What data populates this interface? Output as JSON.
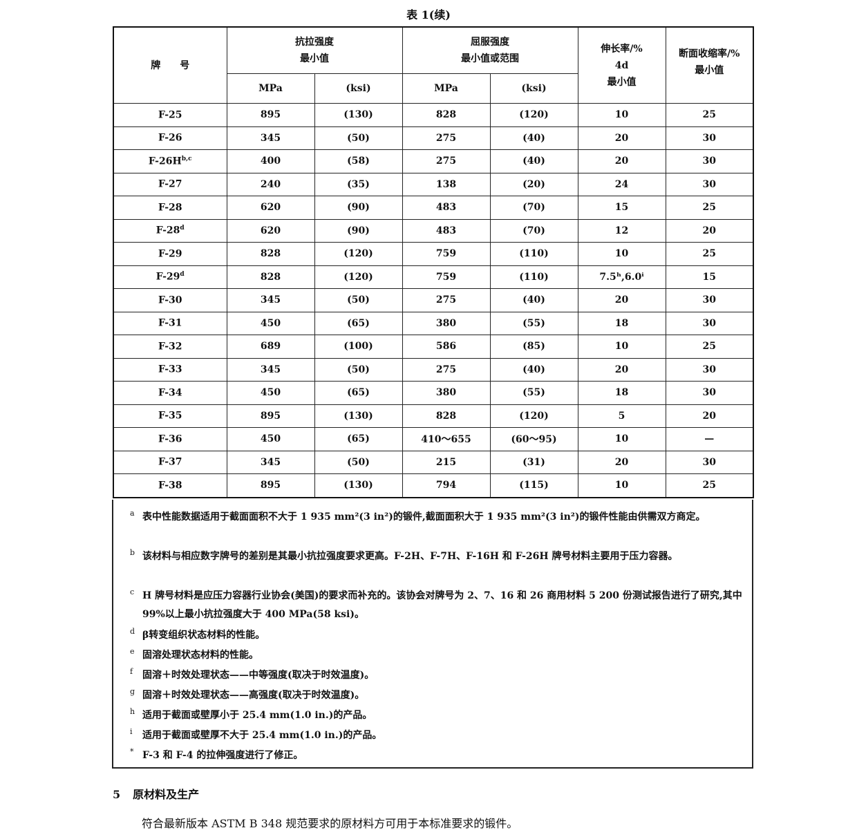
{
  "table_title": "表 1(续)",
  "headers": {
    "grade": "牌　　号",
    "tensile": "抗拉强度\n最小值",
    "yield": "屈服强度\n最小值或范围",
    "elongation": "伸长率/%\n4d\n最小值",
    "reduction": "断面收缩率/%\n最小值",
    "mpa": "MPa",
    "ksi": "(ksi)"
  },
  "rows": [
    {
      "grade": "F-25",
      "sup": "",
      "ts_mpa": "895",
      "ts_ksi": "(130)",
      "ys_mpa": "828",
      "ys_ksi": "(120)",
      "el": "10",
      "ra": "25"
    },
    {
      "grade": "F-26",
      "sup": "",
      "ts_mpa": "345",
      "ts_ksi": "(50)",
      "ys_mpa": "275",
      "ys_ksi": "(40)",
      "el": "20",
      "ra": "30"
    },
    {
      "grade": "F-26H",
      "sup": "b,c",
      "ts_mpa": "400",
      "ts_ksi": "(58)",
      "ys_mpa": "275",
      "ys_ksi": "(40)",
      "el": "20",
      "ra": "30"
    },
    {
      "grade": "F-27",
      "sup": "",
      "ts_mpa": "240",
      "ts_ksi": "(35)",
      "ys_mpa": "138",
      "ys_ksi": "(20)",
      "el": "24",
      "ra": "30"
    },
    {
      "grade": "F-28",
      "sup": "",
      "ts_mpa": "620",
      "ts_ksi": "(90)",
      "ys_mpa": "483",
      "ys_ksi": "(70)",
      "el": "15",
      "ra": "25"
    },
    {
      "grade": "F-28",
      "sup": "d",
      "ts_mpa": "620",
      "ts_ksi": "(90)",
      "ys_mpa": "483",
      "ys_ksi": "(70)",
      "el": "12",
      "ra": "20"
    },
    {
      "grade": "F-29",
      "sup": "",
      "ts_mpa": "828",
      "ts_ksi": "(120)",
      "ys_mpa": "759",
      "ys_ksi": "(110)",
      "el": "10",
      "ra": "25"
    },
    {
      "grade": "F-29",
      "sup": "d",
      "ts_mpa": "828",
      "ts_ksi": "(120)",
      "ys_mpa": "759",
      "ys_ksi": "(110)",
      "el": "7.5ʰ,6.0ⁱ",
      "ra": "15"
    },
    {
      "grade": "F-30",
      "sup": "",
      "ts_mpa": "345",
      "ts_ksi": "(50)",
      "ys_mpa": "275",
      "ys_ksi": "(40)",
      "el": "20",
      "ra": "30"
    },
    {
      "grade": "F-31",
      "sup": "",
      "ts_mpa": "450",
      "ts_ksi": "(65)",
      "ys_mpa": "380",
      "ys_ksi": "(55)",
      "el": "18",
      "ra": "30"
    },
    {
      "grade": "F-32",
      "sup": "",
      "ts_mpa": "689",
      "ts_ksi": "(100)",
      "ys_mpa": "586",
      "ys_ksi": "(85)",
      "el": "10",
      "ra": "25"
    },
    {
      "grade": "F-33",
      "sup": "",
      "ts_mpa": "345",
      "ts_ksi": "(50)",
      "ys_mpa": "275",
      "ys_ksi": "(40)",
      "el": "20",
      "ra": "30"
    },
    {
      "grade": "F-34",
      "sup": "",
      "ts_mpa": "450",
      "ts_ksi": "(65)",
      "ys_mpa": "380",
      "ys_ksi": "(55)",
      "el": "18",
      "ra": "30"
    },
    {
      "grade": "F-35",
      "sup": "",
      "ts_mpa": "895",
      "ts_ksi": "(130)",
      "ys_mpa": "828",
      "ys_ksi": "(120)",
      "el": "5",
      "ra": "20"
    },
    {
      "grade": "F-36",
      "sup": "",
      "ts_mpa": "450",
      "ts_ksi": "(65)",
      "ys_mpa": "410～655",
      "ys_ksi": "(60～95)",
      "el": "10",
      "ra": "—"
    },
    {
      "grade": "F-37",
      "sup": "",
      "ts_mpa": "345",
      "ts_ksi": "(50)",
      "ys_mpa": "215",
      "ys_ksi": "(31)",
      "el": "20",
      "ra": "30"
    },
    {
      "grade": "F-38",
      "sup": "",
      "ts_mpa": "895",
      "ts_ksi": "(130)",
      "ys_mpa": "794",
      "ys_ksi": "(115)",
      "el": "10",
      "ra": "25"
    }
  ],
  "notes": [
    {
      "mark": "a",
      "text": "表中性能数据适用于截面面积不大于 1 935 mm²(3 in²)的锻件,截面面积大于 1 935 mm²(3 in²)的锻件性能由供需双方商定。"
    },
    {
      "mark": "b",
      "text": "该材料与相应数字牌号的差别是其最小抗拉强度要求更高。F-2H、F-7H、F-16H 和 F-26H 牌号材料主要用于压力容器。"
    },
    {
      "mark": "c",
      "text": "H 牌号材料是应压力容器行业协会(美国)的要求而补充的。该协会对牌号为 2、7、16 和 26 商用材料 5 200 份测试报告进行了研究,其中 99%以上最小抗拉强度大于 400 MPa(58 ksi)。"
    },
    {
      "mark": "d",
      "text": "β转变组织状态材料的性能。"
    },
    {
      "mark": "e",
      "text": "固溶处理状态材料的性能。"
    },
    {
      "mark": "f",
      "text": "固溶＋时效处理状态——中等强度(取决于时效温度)。"
    },
    {
      "mark": "g",
      "text": "固溶＋时效处理状态——高强度(取决于时效温度)。"
    },
    {
      "mark": "h",
      "text": "适用于截面或壁厚小于 25.4 mm(1.0 in.)的产品。"
    },
    {
      "mark": "i",
      "text": "适用于截面或壁厚不大于 25.4 mm(1.0 in.)的产品。"
    },
    {
      "mark": "*",
      "text": "F-3 和 F-4 的拉伸强度进行了修正。"
    }
  ],
  "section": {
    "number": "5",
    "title": "原材料及生产",
    "paragraph": "符合最新版本 ASTM B 348 规范要求的原材料方可用于本标准要求的锻件。"
  }
}
